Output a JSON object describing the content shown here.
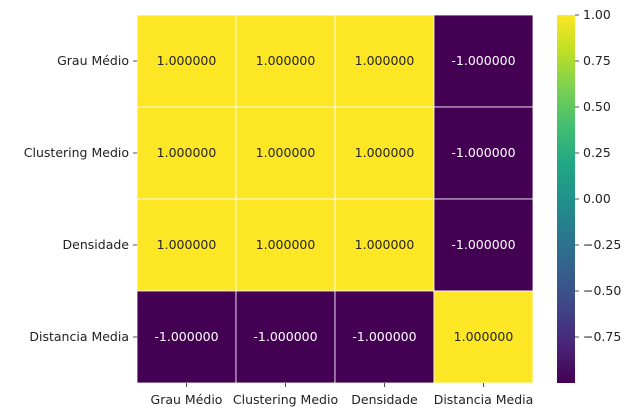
{
  "chart_data": {
    "type": "heatmap",
    "title": "",
    "xlabel": "",
    "ylabel": "",
    "row_labels": [
      "Grau Médio",
      "Clustering Medio",
      "Densidade",
      "Distancia Media"
    ],
    "col_labels": [
      "Grau Médio",
      "Clustering Medio",
      "Densidade",
      "Distancia Media"
    ],
    "values": [
      [
        1,
        1,
        1,
        -1
      ],
      [
        1,
        1,
        1,
        -1
      ],
      [
        1,
        1,
        1,
        -1
      ],
      [
        -1,
        -1,
        -1,
        1
      ]
    ],
    "cell_labels": [
      [
        "1.000000",
        "1.000000",
        "1.000000",
        "-1.000000"
      ],
      [
        "1.000000",
        "1.000000",
        "1.000000",
        "-1.000000"
      ],
      [
        "1.000000",
        "1.000000",
        "1.000000",
        "-1.000000"
      ],
      [
        "-1.000000",
        "-1.000000",
        "-1.000000",
        "1.000000"
      ]
    ],
    "colormap": "viridis",
    "color_high": "#fde725",
    "color_low": "#440154",
    "vmin": -1,
    "vmax": 1,
    "colorbar": {
      "ticks": [
        1.0,
        0.75,
        0.5,
        0.25,
        0.0,
        -0.25,
        -0.5,
        -0.75
      ],
      "tick_labels": [
        "1.00",
        "0.75",
        "0.50",
        "0.25",
        "0.00",
        "−0.25",
        "−0.50",
        "−0.75"
      ]
    }
  }
}
